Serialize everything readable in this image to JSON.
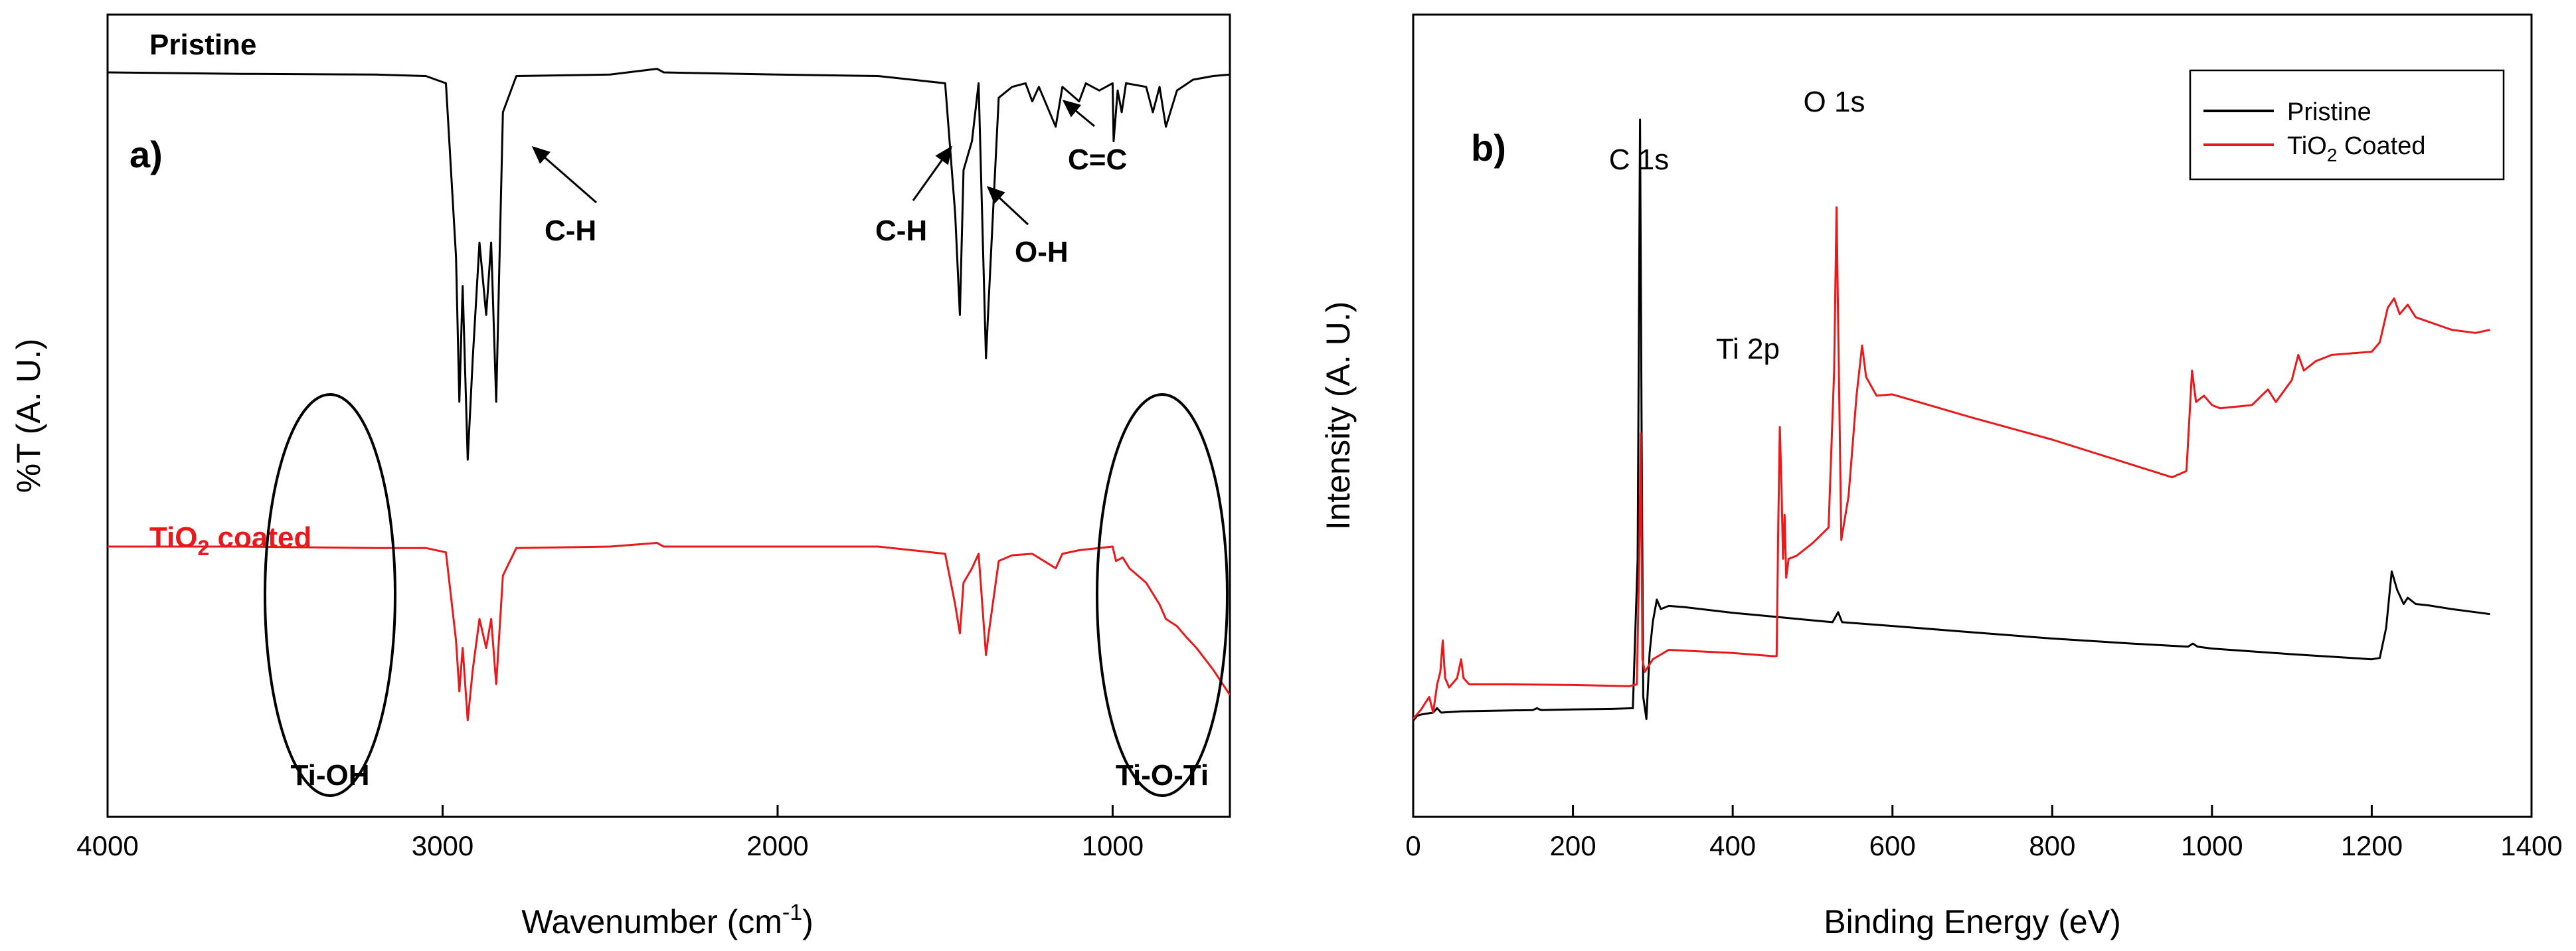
{
  "chart_data": [
    {
      "panel": "a)",
      "type": "line",
      "xlabel": "Wavenumber (cm",
      "xlabel_sup": "-1",
      "xlabel_tail": ")",
      "ylabel": "%T (A. U.)",
      "xlim": [
        4000,
        650
      ],
      "x_reversed": true,
      "xticks": [
        4000,
        3000,
        2000,
        1000
      ],
      "y_ticks_shown": false,
      "series": [
        {
          "name": "Pristine",
          "color": "#000000",
          "points": [
            [
              4000,
              0.955
            ],
            [
              3600,
              0.953
            ],
            [
              3200,
              0.952
            ],
            [
              3050,
              0.95
            ],
            [
              2990,
              0.94
            ],
            [
              2960,
              0.7
            ],
            [
              2950,
              0.5
            ],
            [
              2940,
              0.66
            ],
            [
              2925,
              0.42
            ],
            [
              2910,
              0.56
            ],
            [
              2890,
              0.72
            ],
            [
              2870,
              0.62
            ],
            [
              2855,
              0.72
            ],
            [
              2840,
              0.5
            ],
            [
              2820,
              0.9
            ],
            [
              2780,
              0.95
            ],
            [
              2500,
              0.952
            ],
            [
              2360,
              0.96
            ],
            [
              2340,
              0.955
            ],
            [
              2000,
              0.952
            ],
            [
              1700,
              0.95
            ],
            [
              1500,
              0.94
            ],
            [
              1470,
              0.76
            ],
            [
              1456,
              0.62
            ],
            [
              1445,
              0.82
            ],
            [
              1420,
              0.86
            ],
            [
              1400,
              0.94
            ],
            [
              1378,
              0.56
            ],
            [
              1370,
              0.64
            ],
            [
              1340,
              0.92
            ],
            [
              1300,
              0.935
            ],
            [
              1260,
              0.94
            ],
            [
              1240,
              0.915
            ],
            [
              1220,
              0.935
            ],
            [
              1170,
              0.88
            ],
            [
              1150,
              0.935
            ],
            [
              1100,
              0.915
            ],
            [
              1080,
              0.94
            ],
            [
              1040,
              0.93
            ],
            [
              1000,
              0.94
            ],
            [
              997,
              0.86
            ],
            [
              985,
              0.93
            ],
            [
              973,
              0.9
            ],
            [
              960,
              0.94
            ],
            [
              900,
              0.935
            ],
            [
              880,
              0.9
            ],
            [
              860,
              0.935
            ],
            [
              841,
              0.88
            ],
            [
              808,
              0.93
            ],
            [
              760,
              0.945
            ],
            [
              700,
              0.95
            ],
            [
              650,
              0.952
            ]
          ]
        },
        {
          "name": "TiO2 coated",
          "color": "#e8191b",
          "points": [
            [
              4000,
              0.3
            ],
            [
              3600,
              0.3
            ],
            [
              3200,
              0.298
            ],
            [
              3050,
              0.298
            ],
            [
              2990,
              0.292
            ],
            [
              2960,
              0.17
            ],
            [
              2950,
              0.1
            ],
            [
              2940,
              0.16
            ],
            [
              2925,
              0.06
            ],
            [
              2910,
              0.13
            ],
            [
              2890,
              0.2
            ],
            [
              2870,
              0.16
            ],
            [
              2855,
              0.2
            ],
            [
              2840,
              0.11
            ],
            [
              2820,
              0.26
            ],
            [
              2780,
              0.298
            ],
            [
              2500,
              0.3
            ],
            [
              2360,
              0.305
            ],
            [
              2340,
              0.3
            ],
            [
              2000,
              0.3
            ],
            [
              1700,
              0.3
            ],
            [
              1500,
              0.29
            ],
            [
              1470,
              0.22
            ],
            [
              1456,
              0.18
            ],
            [
              1445,
              0.25
            ],
            [
              1420,
              0.27
            ],
            [
              1400,
              0.29
            ],
            [
              1378,
              0.15
            ],
            [
              1370,
              0.18
            ],
            [
              1340,
              0.28
            ],
            [
              1300,
              0.288
            ],
            [
              1240,
              0.29
            ],
            [
              1170,
              0.27
            ],
            [
              1150,
              0.29
            ],
            [
              1100,
              0.295
            ],
            [
              1040,
              0.298
            ],
            [
              1000,
              0.3
            ],
            [
              990,
              0.28
            ],
            [
              970,
              0.285
            ],
            [
              950,
              0.27
            ],
            [
              900,
              0.25
            ],
            [
              860,
              0.22
            ],
            [
              841,
              0.2
            ],
            [
              808,
              0.19
            ],
            [
              780,
              0.175
            ],
            [
              750,
              0.16
            ],
            [
              700,
              0.13
            ],
            [
              650,
              0.095
            ]
          ]
        }
      ],
      "annotations": [
        {
          "text": "Pristine",
          "color": "#000000"
        },
        {
          "text": "TiO",
          "sub": "2",
          "tail": " coated",
          "color": "#e8191b"
        },
        {
          "text": "C-H"
        },
        {
          "text": "C-H"
        },
        {
          "text": "O-H"
        },
        {
          "text": "C=C"
        },
        {
          "text": "Ti-OH"
        },
        {
          "text": "Ti-O-Ti"
        }
      ]
    },
    {
      "panel": "b)",
      "type": "line",
      "xlabel": "Binding Energy (eV)",
      "ylabel": "Intensity (A. U.)",
      "xlim": [
        0,
        1400
      ],
      "xticks": [
        0,
        200,
        400,
        600,
        800,
        1000,
        1200,
        1400
      ],
      "y_ticks_shown": false,
      "legend_position": "top-right",
      "series": [
        {
          "name": "Pristine",
          "color": "#000000",
          "points": [
            [
              0,
              0.042
            ],
            [
              5,
              0.05
            ],
            [
              10,
              0.052
            ],
            [
              25,
              0.055
            ],
            [
              30,
              0.062
            ],
            [
              35,
              0.055
            ],
            [
              60,
              0.057
            ],
            [
              100,
              0.058
            ],
            [
              150,
              0.059
            ],
            [
              155,
              0.062
            ],
            [
              160,
              0.059
            ],
            [
              200,
              0.06
            ],
            [
              250,
              0.061
            ],
            [
              275,
              0.062
            ],
            [
              281,
              0.3
            ],
            [
              284,
              1.0
            ],
            [
              286,
              0.5
            ],
            [
              288,
              0.08
            ],
            [
              292,
              0.045
            ],
            [
              296,
              0.15
            ],
            [
              300,
              0.2
            ],
            [
              305,
              0.235
            ],
            [
              310,
              0.22
            ],
            [
              320,
              0.225
            ],
            [
              340,
              0.223
            ],
            [
              400,
              0.214
            ],
            [
              450,
              0.208
            ],
            [
              500,
              0.202
            ],
            [
              525,
              0.199
            ],
            [
              532,
              0.215
            ],
            [
              537,
              0.199
            ],
            [
              600,
              0.193
            ],
            [
              700,
              0.183
            ],
            [
              800,
              0.173
            ],
            [
              900,
              0.165
            ],
            [
              970,
              0.16
            ],
            [
              976,
              0.165
            ],
            [
              982,
              0.16
            ],
            [
              1000,
              0.157
            ],
            [
              1100,
              0.148
            ],
            [
              1200,
              0.14
            ],
            [
              1210,
              0.142
            ],
            [
              1218,
              0.19
            ],
            [
              1225,
              0.28
            ],
            [
              1232,
              0.25
            ],
            [
              1240,
              0.228
            ],
            [
              1245,
              0.238
            ],
            [
              1255,
              0.228
            ],
            [
              1270,
              0.226
            ],
            [
              1300,
              0.22
            ],
            [
              1348,
              0.212
            ]
          ]
        },
        {
          "name": "TiO2 Coated",
          "color": "#e8191b",
          "points": [
            [
              0,
              0.045
            ],
            [
              10,
              0.06
            ],
            [
              15,
              0.07
            ],
            [
              20,
              0.08
            ],
            [
              25,
              0.055
            ],
            [
              30,
              0.1
            ],
            [
              34,
              0.12
            ],
            [
              37,
              0.17
            ],
            [
              40,
              0.11
            ],
            [
              45,
              0.095
            ],
            [
              55,
              0.11
            ],
            [
              60,
              0.14
            ],
            [
              63,
              0.11
            ],
            [
              70,
              0.1
            ],
            [
              120,
              0.1
            ],
            [
              200,
              0.099
            ],
            [
              270,
              0.097
            ],
            [
              280,
              0.1
            ],
            [
              283,
              0.3
            ],
            [
              285,
              0.5
            ],
            [
              287,
              0.14
            ],
            [
              290,
              0.12
            ],
            [
              300,
              0.14
            ],
            [
              320,
              0.155
            ],
            [
              400,
              0.15
            ],
            [
              450,
              0.145
            ],
            [
              455,
              0.145
            ],
            [
              457,
              0.35
            ],
            [
              459,
              0.51
            ],
            [
              461,
              0.42
            ],
            [
              463,
              0.3
            ],
            [
              465,
              0.37
            ],
            [
              467,
              0.27
            ],
            [
              470,
              0.3
            ],
            [
              480,
              0.305
            ],
            [
              500,
              0.325
            ],
            [
              520,
              0.35
            ],
            [
              527,
              0.6
            ],
            [
              530,
              0.86
            ],
            [
              532,
              0.68
            ],
            [
              536,
              0.33
            ],
            [
              545,
              0.4
            ],
            [
              555,
              0.56
            ],
            [
              562,
              0.64
            ],
            [
              567,
              0.59
            ],
            [
              580,
              0.56
            ],
            [
              600,
              0.562
            ],
            [
              700,
              0.525
            ],
            [
              800,
              0.49
            ],
            [
              900,
              0.45
            ],
            [
              950,
              0.43
            ],
            [
              968,
              0.44
            ],
            [
              975,
              0.6
            ],
            [
              980,
              0.55
            ],
            [
              990,
              0.56
            ],
            [
              1000,
              0.545
            ],
            [
              1010,
              0.54
            ],
            [
              1050,
              0.545
            ],
            [
              1070,
              0.57
            ],
            [
              1080,
              0.55
            ],
            [
              1100,
              0.585
            ],
            [
              1108,
              0.625
            ],
            [
              1115,
              0.6
            ],
            [
              1130,
              0.615
            ],
            [
              1150,
              0.625
            ],
            [
              1200,
              0.63
            ],
            [
              1210,
              0.645
            ],
            [
              1220,
              0.7
            ],
            [
              1228,
              0.715
            ],
            [
              1235,
              0.69
            ],
            [
              1245,
              0.705
            ],
            [
              1255,
              0.685
            ],
            [
              1300,
              0.665
            ],
            [
              1330,
              0.66
            ],
            [
              1348,
              0.665
            ]
          ]
        }
      ],
      "peak_labels": [
        {
          "text": "C 1s"
        },
        {
          "text": "O 1s"
        },
        {
          "text": "Ti 2p"
        }
      ],
      "legend": [
        {
          "text": "Pristine",
          "color": "#000000"
        },
        {
          "text": "TiO",
          "sub": "2",
          "tail": " Coated",
          "color": "#e8191b"
        }
      ]
    }
  ]
}
